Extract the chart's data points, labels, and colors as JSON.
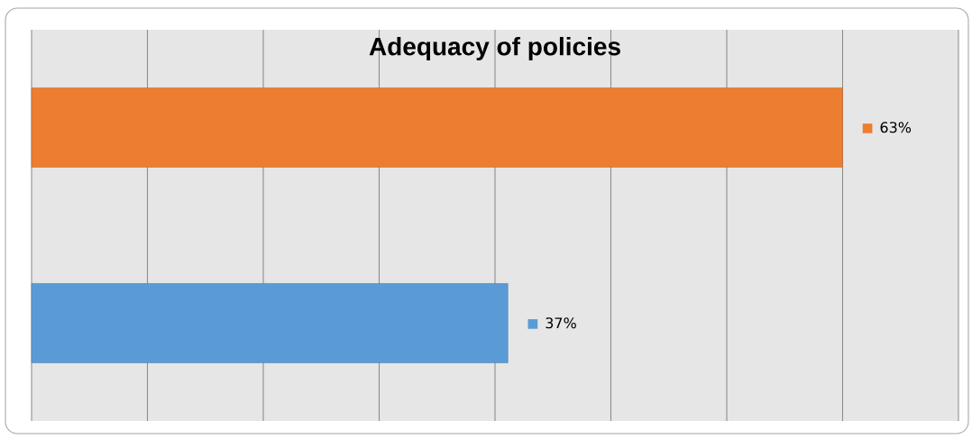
{
  "chart_data": {
    "type": "bar",
    "orientation": "horizontal",
    "title": "Adequacy of policies",
    "categories": [
      null,
      null
    ],
    "values": [
      63,
      37
    ],
    "colors": [
      "#ed7d31",
      "#5b9bd5"
    ],
    "value_labels": [
      "63%",
      "37%"
    ],
    "xlim": [
      0,
      72
    ],
    "xticks": [
      {
        "value": 0,
        "label": null
      },
      {
        "value": 9,
        "label": null
      },
      {
        "value": 18,
        "label": null
      },
      {
        "value": 27,
        "label": null
      },
      {
        "value": 36,
        "label": null
      },
      {
        "value": 45,
        "label": null
      },
      {
        "value": 54,
        "label": null
      },
      {
        "value": 63,
        "label": null
      },
      {
        "value": 72,
        "label": null
      }
    ],
    "grid": "x"
  }
}
